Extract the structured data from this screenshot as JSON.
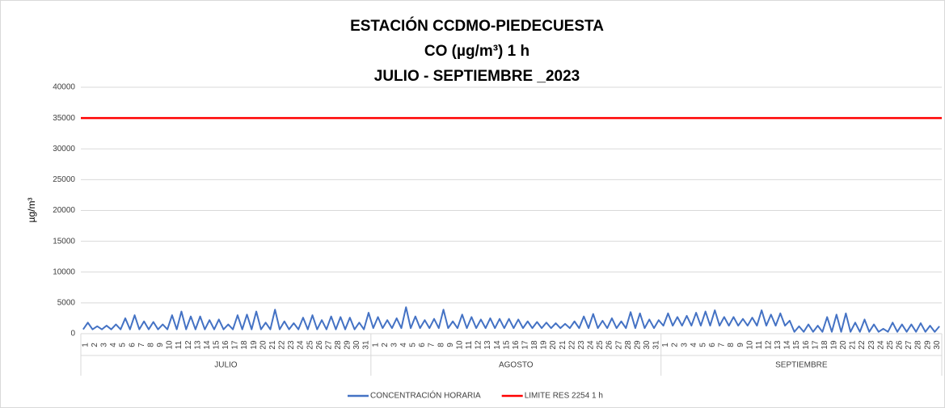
{
  "chart_data": {
    "type": "line",
    "title": "ESTACIÓN CCDMO-PIEDECUESTA",
    "subtitle": "CO (µg/m³) 1 h",
    "subtitle2": "JULIO - SEPTIEMBRE _2023",
    "ylabel": "µg/m³",
    "groups": [
      "JULIO",
      "AGOSTO",
      "SEPTIEMBRE"
    ],
    "categories": [
      "1",
      null,
      "2",
      null,
      "3",
      null,
      "4",
      null,
      "5",
      null,
      "6",
      null,
      "7",
      null,
      "8",
      null,
      "9",
      null,
      "10",
      null,
      "11",
      null,
      "12",
      null,
      "13",
      null,
      "14",
      null,
      "15",
      null,
      "16",
      null,
      "17",
      null,
      "18",
      null,
      "19",
      null,
      "20",
      null,
      "21",
      null,
      "22",
      null,
      "23",
      null,
      "24",
      null,
      "25",
      null,
      "26",
      null,
      "27",
      null,
      "28",
      null,
      "29",
      null,
      "30",
      null,
      "31",
      null,
      "1",
      null,
      "2",
      null,
      "3",
      null,
      "4",
      null,
      "5",
      null,
      "6",
      null,
      "7",
      null,
      "8",
      null,
      "9",
      null,
      "10",
      null,
      "11",
      null,
      "12",
      null,
      "13",
      null,
      "14",
      null,
      "15",
      null,
      "16",
      null,
      "17",
      null,
      "18",
      null,
      "19",
      null,
      "20",
      null,
      "21",
      null,
      "22",
      null,
      "23",
      null,
      "24",
      null,
      "25",
      null,
      "26",
      null,
      "27",
      null,
      "28",
      null,
      "29",
      null,
      "30",
      null,
      "31",
      null,
      "1",
      null,
      "2",
      null,
      "3",
      null,
      "4",
      null,
      "5",
      null,
      "6",
      null,
      "7",
      null,
      "8",
      null,
      "9",
      null,
      "10",
      null,
      "11",
      null,
      "12",
      null,
      "13",
      null,
      "14",
      null,
      "15",
      null,
      "16",
      null,
      "17",
      null,
      "18",
      null,
      "19",
      null,
      "20",
      null,
      "21",
      null,
      "22",
      null,
      "23",
      null,
      "24",
      null,
      "25",
      null,
      "26",
      null,
      "27",
      null,
      "28",
      null,
      "29",
      null,
      "30",
      null
    ],
    "series": [
      {
        "name": "CONCENTRACIÓN HORARIA",
        "color": "#4472c4",
        "values": [
          700,
          1800,
          700,
          1200,
          700,
          1300,
          700,
          1500,
          700,
          2500,
          700,
          3000,
          700,
          2000,
          700,
          1900,
          700,
          1500,
          700,
          3000,
          700,
          3600,
          700,
          2800,
          700,
          2800,
          700,
          2200,
          700,
          2300,
          700,
          1500,
          700,
          3000,
          700,
          3100,
          700,
          3600,
          700,
          1800,
          700,
          3900,
          700,
          2000,
          700,
          1700,
          700,
          2600,
          700,
          3000,
          700,
          2200,
          700,
          2800,
          700,
          2700,
          700,
          2600,
          700,
          1800,
          700,
          3400,
          900,
          2700,
          900,
          2200,
          900,
          2500,
          900,
          4300,
          900,
          2800,
          900,
          2200,
          900,
          2400,
          900,
          3900,
          900,
          2000,
          900,
          3100,
          900,
          2700,
          900,
          2300,
          900,
          2500,
          900,
          2400,
          900,
          2400,
          900,
          2300,
          900,
          2000,
          900,
          1900,
          900,
          1800,
          900,
          1700,
          900,
          1600,
          900,
          2000,
          900,
          2800,
          900,
          3200,
          900,
          2100,
          900,
          2500,
          900,
          2000,
          900,
          3500,
          900,
          3300,
          900,
          2300,
          900,
          2200,
          1300,
          3300,
          1300,
          2700,
          1300,
          2900,
          1300,
          3400,
          1300,
          3600,
          1300,
          3800,
          1300,
          2700,
          1300,
          2700,
          1300,
          2400,
          1300,
          2600,
          1300,
          3800,
          1300,
          3100,
          1300,
          3300,
          1300,
          2100,
          300,
          1200,
          300,
          1500,
          300,
          1300,
          300,
          2700,
          300,
          3100,
          300,
          3300,
          300,
          1800,
          300,
          2300,
          300,
          1500,
          300,
          800,
          300,
          1800,
          300,
          1500,
          300,
          1500,
          300,
          1700,
          300,
          1300,
          300,
          1200
        ]
      }
    ],
    "hlines": [
      {
        "name": "LIMITE RES 2254 1 h",
        "color": "#ff0000",
        "value": 35000
      }
    ],
    "ylim": [
      0,
      40000
    ],
    "yticks": [
      0,
      5000,
      10000,
      15000,
      20000,
      25000,
      30000,
      35000,
      40000
    ],
    "grid": true
  }
}
